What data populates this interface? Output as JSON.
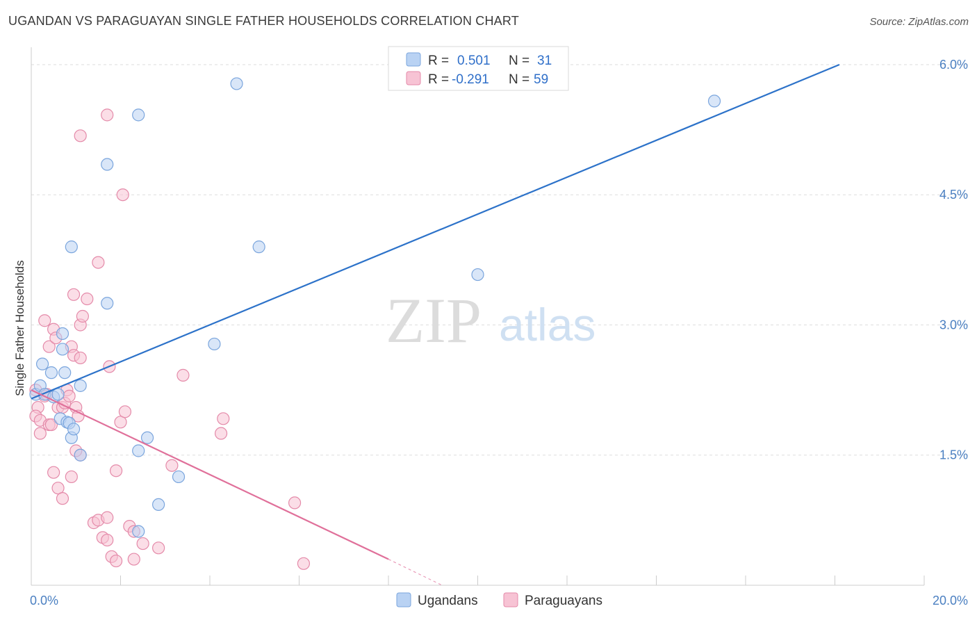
{
  "title": "UGANDAN VS PARAGUAYAN SINGLE FATHER HOUSEHOLDS CORRELATION CHART",
  "source": "Source: ZipAtlas.com",
  "watermark": {
    "zip": "ZIP",
    "atlas": "atlas"
  },
  "colors": {
    "blue_fill": "#b9d2f3",
    "blue_stroke": "#7aa5dd",
    "blue_line": "#2c72c9",
    "pink_fill": "#f7c3d4",
    "pink_stroke": "#e48aa9",
    "pink_line": "#e0709a",
    "grid": "#dddddd",
    "tick": "#4a7fc1"
  },
  "legend": {
    "r_label": "R =",
    "n_label": "N =",
    "rows": [
      {
        "r": "0.501",
        "n": "31"
      },
      {
        "r": "-0.291",
        "n": "59"
      }
    ]
  },
  "bottom_legend": [
    "Ugandans",
    "Paraguayans"
  ],
  "chart_data": {
    "type": "scatter",
    "title": "UGANDAN VS PARAGUAYAN SINGLE FATHER HOUSEHOLDS CORRELATION CHART",
    "xlabel": "",
    "ylabel": "Single Father Households",
    "xlim": [
      0,
      20
    ],
    "ylim": [
      0,
      6.2
    ],
    "x_tick_labels": [
      "0.0%",
      "20.0%"
    ],
    "y_ticks": [
      1.5,
      3.0,
      4.5,
      6.0
    ],
    "y_tick_labels": [
      "1.5%",
      "3.0%",
      "4.5%",
      "6.0%"
    ],
    "series": [
      {
        "name": "Ugandans",
        "r": 0.501,
        "n": 31,
        "trend": {
          "x0": 0,
          "y0": 2.15,
          "x1": 18.1,
          "y1": 6.0
        },
        "points": [
          [
            0.1,
            2.2
          ],
          [
            0.2,
            2.3
          ],
          [
            0.3,
            2.2
          ],
          [
            0.25,
            2.55
          ],
          [
            0.45,
            2.45
          ],
          [
            0.5,
            2.17
          ],
          [
            0.6,
            2.2
          ],
          [
            0.7,
            2.9
          ],
          [
            0.75,
            2.45
          ],
          [
            0.65,
            1.92
          ],
          [
            0.8,
            1.88
          ],
          [
            0.85,
            1.87
          ],
          [
            0.7,
            2.72
          ],
          [
            0.9,
            1.7
          ],
          [
            0.95,
            1.8
          ],
          [
            1.1,
            2.3
          ],
          [
            1.1,
            1.5
          ],
          [
            0.9,
            3.9
          ],
          [
            1.7,
            3.25
          ],
          [
            1.7,
            4.85
          ],
          [
            2.4,
            1.55
          ],
          [
            2.4,
            0.62
          ],
          [
            2.6,
            1.7
          ],
          [
            2.85,
            0.93
          ],
          [
            3.3,
            1.25
          ],
          [
            4.1,
            2.78
          ],
          [
            4.6,
            5.78
          ],
          [
            5.1,
            3.9
          ],
          [
            10.0,
            3.58
          ],
          [
            15.3,
            5.58
          ],
          [
            2.4,
            5.42
          ]
        ]
      },
      {
        "name": "Paraguayans",
        "r": -0.291,
        "n": 59,
        "trend": {
          "x0": 0,
          "y0": 2.25,
          "x1": 8.0,
          "y1": 0.3
        },
        "trend_dashed_to": {
          "x": 9.2,
          "y": 0.0
        },
        "points": [
          [
            0.1,
            2.25
          ],
          [
            0.15,
            2.05
          ],
          [
            0.1,
            1.95
          ],
          [
            0.2,
            1.75
          ],
          [
            0.2,
            1.9
          ],
          [
            0.3,
            2.18
          ],
          [
            0.35,
            2.2
          ],
          [
            0.4,
            1.85
          ],
          [
            0.45,
            1.85
          ],
          [
            0.3,
            3.05
          ],
          [
            0.4,
            2.75
          ],
          [
            0.5,
            2.95
          ],
          [
            0.55,
            2.85
          ],
          [
            0.6,
            2.05
          ],
          [
            0.7,
            2.05
          ],
          [
            0.75,
            2.1
          ],
          [
            0.8,
            2.25
          ],
          [
            0.85,
            2.18
          ],
          [
            0.9,
            2.75
          ],
          [
            0.95,
            2.65
          ],
          [
            1.0,
            2.05
          ],
          [
            1.05,
            1.95
          ],
          [
            1.1,
            1.5
          ],
          [
            1.0,
            1.55
          ],
          [
            0.5,
            1.3
          ],
          [
            0.6,
            1.12
          ],
          [
            0.7,
            1.0
          ],
          [
            0.9,
            1.25
          ],
          [
            1.1,
            3.0
          ],
          [
            1.15,
            3.1
          ],
          [
            0.95,
            3.35
          ],
          [
            1.25,
            3.3
          ],
          [
            1.1,
            2.62
          ],
          [
            1.5,
            3.72
          ],
          [
            1.4,
            0.72
          ],
          [
            1.5,
            0.75
          ],
          [
            1.6,
            0.55
          ],
          [
            1.7,
            0.52
          ],
          [
            1.7,
            0.78
          ],
          [
            1.8,
            0.33
          ],
          [
            1.9,
            0.28
          ],
          [
            1.9,
            1.32
          ],
          [
            2.0,
            1.88
          ],
          [
            2.1,
            2.0
          ],
          [
            2.05,
            4.5
          ],
          [
            1.7,
            5.42
          ],
          [
            1.1,
            5.18
          ],
          [
            2.2,
            0.68
          ],
          [
            2.3,
            0.62
          ],
          [
            2.3,
            0.3
          ],
          [
            2.5,
            0.48
          ],
          [
            2.85,
            0.43
          ],
          [
            3.15,
            1.38
          ],
          [
            3.4,
            2.42
          ],
          [
            4.25,
            1.75
          ],
          [
            4.3,
            1.92
          ],
          [
            5.9,
            0.95
          ],
          [
            6.1,
            0.25
          ],
          [
            1.75,
            2.52
          ]
        ]
      }
    ]
  }
}
